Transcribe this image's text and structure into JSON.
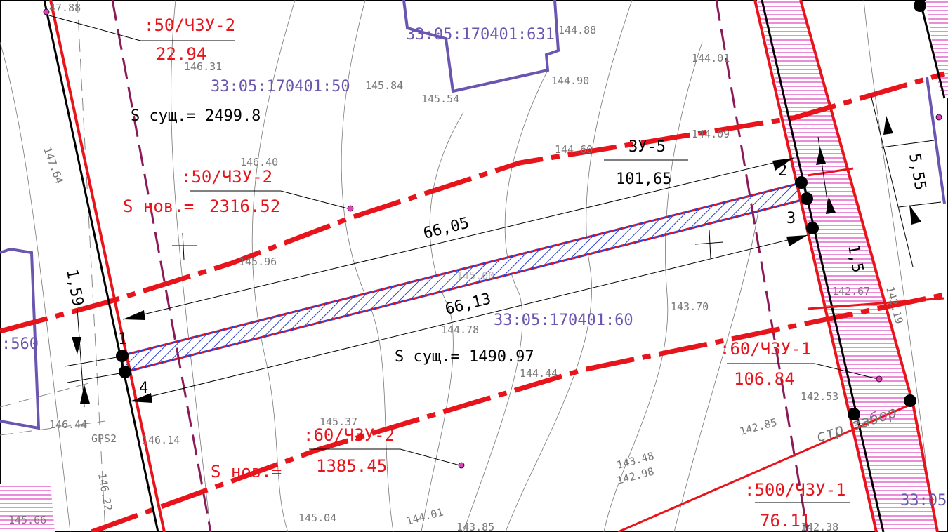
{
  "map_labels": {
    "parcel_labels": [
      ":50/ЧЗУ-2",
      "22.94",
      ":50/ЧЗУ-2",
      "S нов.=",
      "2316.52",
      ":60/ЧЗУ-1",
      "106.84",
      ":60/ЧЗУ-2",
      "S нов.=",
      "1385.45",
      ":500/ЧЗУ-1",
      "76.11"
    ],
    "zone_label": "ЗУ-5",
    "zone_length": "101,65",
    "cadastral_numbers": [
      "33:05:170401:631",
      "33:05:170401:50",
      "33:05:170401:60",
      ":560",
      "33:05"
    ],
    "areas": [
      "S сущ.= 2499.8",
      "S сущ.= 1490.97"
    ],
    "dimensions": [
      "66,05",
      "66,13",
      "1,59",
      "5,55",
      "1,5"
    ],
    "points": [
      "1",
      "2",
      "3",
      "4"
    ],
    "elevations": [
      "47.88",
      "146.31",
      "145.84",
      "145.54",
      "144.88",
      "144.90",
      "144.01",
      "144.09",
      "144.60",
      "146.40",
      "147.64",
      "145.96",
      "145.00",
      "144.78",
      "144.44",
      "143.70",
      "142.67",
      "142.19",
      "142.53",
      "142.85",
      "145.37",
      "146.44",
      "146.14",
      "146.22",
      "143.48",
      "142.98",
      "145.04",
      "144.01",
      "143.85",
      "145.66",
      "142.38"
    ],
    "notes": [
      "GPS2",
      "стр забор"
    ]
  }
}
